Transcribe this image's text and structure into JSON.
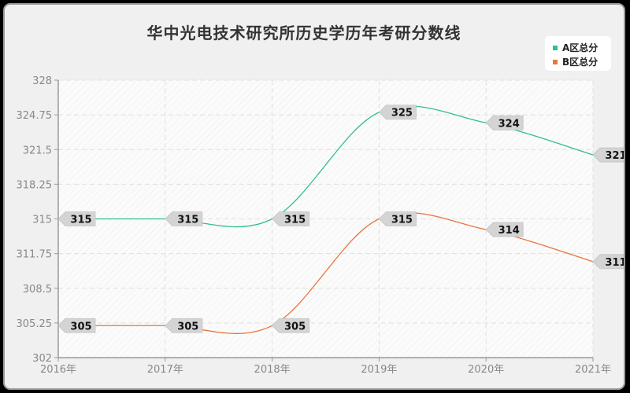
{
  "chart_data": {
    "type": "line",
    "title": "华中光电技术研究所历史学历年考研分数线",
    "xlabel": "",
    "ylabel": "",
    "categories": [
      "2016年",
      "2017年",
      "2018年",
      "2019年",
      "2020年",
      "2021年"
    ],
    "series": [
      {
        "name": "A区总分",
        "color": "#2fbf8f",
        "values": [
          315,
          315,
          315,
          325,
          324,
          321
        ]
      },
      {
        "name": "B区总分",
        "color": "#e9743f",
        "values": [
          305,
          305,
          305,
          315,
          314,
          311
        ]
      }
    ],
    "ylim": [
      302,
      328
    ],
    "yticks": [
      "328",
      "324.75",
      "321.5",
      "318.25",
      "315",
      "311.75",
      "308.5",
      "305.25",
      "302"
    ],
    "grid": true,
    "legend_position": "top-right",
    "smooth": true
  },
  "legend": {
    "items": [
      {
        "label": "A区总分",
        "color": "#2fbf8f"
      },
      {
        "label": "B区总分",
        "color": "#e9743f"
      }
    ]
  }
}
